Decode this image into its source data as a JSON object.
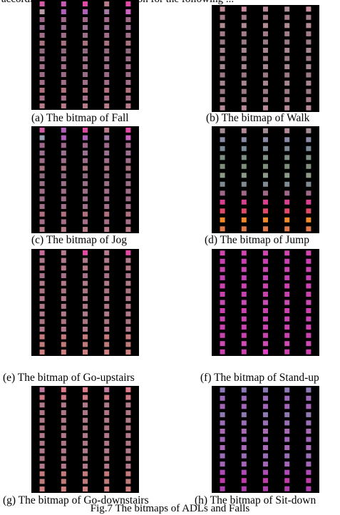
{
  "top_text": "according appropriate information for the following ...",
  "figure_caption": "Fig.7 The bitmaps of ADLs and Falls",
  "panels": [
    {
      "id": "fall",
      "caption": "(a) The bitmap of Fall",
      "columns": [
        [
          "#d25aa6",
          "#b79aa6",
          "#a06888",
          "#9a6f8f",
          "#a06d88",
          "#a6727f",
          "#8f6a7f",
          "#996e86",
          "#a06d88",
          "#9b6a86",
          "#a06e88",
          "#b0717f",
          "#a46f86",
          "#b77a88"
        ],
        [
          "#c65ab5",
          "#b05fb8",
          "#a06888",
          "#9a6f8f",
          "#a06d88",
          "#a6727f",
          "#8f6a7f",
          "#996e86",
          "#a06d88",
          "#9b6a86",
          "#a06e88",
          "#b0717f",
          "#a46f86",
          "#b77a88"
        ],
        [
          "#e04aa5",
          "#b05fb8",
          "#a06888",
          "#9a6f8f",
          "#a06d88",
          "#a6727f",
          "#8f6a7f",
          "#996e86",
          "#a06d88",
          "#9b6a86",
          "#a06e88",
          "#b0717f",
          "#a46f86",
          "#b77a88"
        ],
        [
          "#b77a88",
          "#a27aa3",
          "#a06888",
          "#9a6f8f",
          "#a06d88",
          "#a6727f",
          "#8f6a7f",
          "#996e86",
          "#a06d88",
          "#9b6a86",
          "#a06e88",
          "#b0717f",
          "#a46f86",
          "#b77a88"
        ],
        [
          "#e04aa5",
          "#cc63c1",
          "#a06888",
          "#9a6f8f",
          "#a06d88",
          "#a6727f",
          "#8f6a7f",
          "#996e86",
          "#a06d88",
          "#9b6a86",
          "#a06e88",
          "#b0717f",
          "#a46f86",
          "#b77a88"
        ]
      ]
    },
    {
      "id": "walk",
      "caption": "(b) The bitmap of Walk",
      "columns": [
        [
          "#c08c98",
          "#a47c88",
          "#b28a94",
          "#a27c8a",
          "#9a7a86",
          "#a88592",
          "#987884",
          "#a38490",
          "#9a7884",
          "#a88592",
          "#9b7986",
          "#a47c88",
          "#b58a96"
        ],
        [
          "#c98ba0",
          "#a47c88",
          "#b28a94",
          "#a27c8a",
          "#9a7a86",
          "#a88592",
          "#987884",
          "#a38490",
          "#9a7884",
          "#a88592",
          "#9b7986",
          "#a47c88",
          "#b58a96"
        ],
        [
          "#b88896",
          "#a47c88",
          "#b28a94",
          "#a27c8a",
          "#9a7a86",
          "#a88592",
          "#987884",
          "#a38490",
          "#9a7884",
          "#a88592",
          "#9b7986",
          "#a47c88",
          "#b58a96"
        ],
        [
          "#ad8f9c",
          "#a47c88",
          "#b28a94",
          "#a27c8a",
          "#9a7a86",
          "#a88592",
          "#987884",
          "#a38490",
          "#9a7884",
          "#a88592",
          "#9b7986",
          "#a47c88",
          "#b58a96"
        ],
        [
          "#c78f9e",
          "#a47c88",
          "#b28a94",
          "#a27c8a",
          "#9a7a86",
          "#a88592",
          "#987884",
          "#a38490",
          "#9a7884",
          "#a88592",
          "#9b7986",
          "#a47c88",
          "#b58a96"
        ]
      ]
    },
    {
      "id": "jog",
      "caption": "(c) The bitmap of Jog",
      "columns": [
        [
          "#d25aa6",
          "#9aa0b5",
          "#a06888",
          "#9a6f8f",
          "#a06d88",
          "#a6727f",
          "#8f6a7f",
          "#996e86",
          "#a06d88",
          "#9b6a86",
          "#a06e88",
          "#b0717f",
          "#a46f86",
          "#b77a88"
        ],
        [
          "#b05fb8",
          "#b05fb8",
          "#a06888",
          "#9a6f8f",
          "#a06d88",
          "#a6727f",
          "#8f6a7f",
          "#996e86",
          "#a06d88",
          "#9b6a86",
          "#a06e88",
          "#b0717f",
          "#a46f86",
          "#b77a88"
        ],
        [
          "#e04aa5",
          "#b05fb8",
          "#a06888",
          "#9a6f8f",
          "#a06d88",
          "#a6727f",
          "#8f6a7f",
          "#996e86",
          "#a06d88",
          "#9b6a86",
          "#a06e88",
          "#b0717f",
          "#a46f86",
          "#b77a88"
        ],
        [
          "#b77a88",
          "#a27aa3",
          "#a06888",
          "#9a6f8f",
          "#a06d88",
          "#a6727f",
          "#8f6a7f",
          "#996e86",
          "#a06d88",
          "#9b6a86",
          "#a06e88",
          "#b0717f",
          "#a46f86",
          "#b77a88"
        ],
        [
          "#e04aa5",
          "#cc63c1",
          "#a06888",
          "#9a6f8f",
          "#a06d88",
          "#a6727f",
          "#8f6a7f",
          "#996e86",
          "#a06d88",
          "#9b6a86",
          "#a06e88",
          "#b0717f",
          "#a46f86",
          "#b77a88"
        ]
      ]
    },
    {
      "id": "jump",
      "caption": "(d) The bitmap of Jump",
      "columns": [
        [
          "#a48c98",
          "#8a8aa6",
          "#7c8a96",
          "#7d8f82",
          "#7e8e7a",
          "#8c9a86",
          "#7f8a92",
          "#a06888",
          "#d8408f",
          "#e04a6a",
          "#f08a2a",
          "#e07a4a"
        ],
        [
          "#b48a98",
          "#8a8aa6",
          "#7c8a96",
          "#7d8f82",
          "#7e8e7a",
          "#8c9a86",
          "#7f8a92",
          "#a06888",
          "#d8408f",
          "#e04a6a",
          "#f08a2a",
          "#e07a4a"
        ],
        [
          "#a48c98",
          "#8a8aa6",
          "#7c8a96",
          "#7d8f82",
          "#7e8e7a",
          "#8c9a86",
          "#7f8a92",
          "#a06888",
          "#d8408f",
          "#e04a6a",
          "#f08a2a",
          "#e07a4a"
        ],
        [
          "#b48a98",
          "#8a8aa6",
          "#7c8a96",
          "#7d8f82",
          "#7e8e7a",
          "#8c9a86",
          "#7f8a92",
          "#a06888",
          "#d8408f",
          "#e04a6a",
          "#f08a2a",
          "#e07a4a"
        ],
        [
          "#a48c98",
          "#8a8aa6",
          "#7c8a96",
          "#7d8f82",
          "#7e8e7a",
          "#8c9a86",
          "#7f8a92",
          "#a06888",
          "#d8408f",
          "#e04a6a",
          "#f08a2a",
          "#e07a4a"
        ]
      ]
    },
    {
      "id": "go-upstairs",
      "caption": "(e) The bitmap of Go-upstairs",
      "columns": [
        [
          "#c76a9a",
          "#b07a8c",
          "#b27684",
          "#a67088",
          "#b07a88",
          "#aa7480",
          "#b07888",
          "#ac7684",
          "#b07a88",
          "#aa7480",
          "#b07888",
          "#c47a7a",
          "#c07a7a",
          "#d08080"
        ],
        [
          "#b87a90",
          "#b07a8c",
          "#b27684",
          "#a67088",
          "#b07a88",
          "#aa7480",
          "#b07888",
          "#ac7684",
          "#b07a88",
          "#aa7480",
          "#b07888",
          "#c47a7a",
          "#c07a7a",
          "#d08080"
        ],
        [
          "#e04aa5",
          "#b07a8c",
          "#b27684",
          "#a67088",
          "#b07a88",
          "#aa7480",
          "#b07888",
          "#ac7684",
          "#b07a88",
          "#aa7480",
          "#b07888",
          "#c47a7a",
          "#c07a7a",
          "#d08080"
        ],
        [
          "#b87a90",
          "#b07a8c",
          "#b27684",
          "#a67088",
          "#b07a88",
          "#aa7480",
          "#b07888",
          "#ac7684",
          "#b07a88",
          "#aa7480",
          "#b07888",
          "#c47a7a",
          "#c07a7a",
          "#d08080"
        ],
        [
          "#e04aa5",
          "#b07a8c",
          "#b27684",
          "#a67088",
          "#b07a88",
          "#aa7480",
          "#b07888",
          "#ac7684",
          "#b07a88",
          "#aa7480",
          "#b07888",
          "#c47a7a",
          "#c07a7a",
          "#d08080"
        ]
      ]
    },
    {
      "id": "stand-up",
      "caption": "(f) The bitmap of Stand-up",
      "columns": [
        [
          "#d245b0",
          "#cc3fb2",
          "#c946b0",
          "#c443b4",
          "#cc42b0",
          "#c842ae",
          "#c94bb2",
          "#cc40b0",
          "#c746b4",
          "#cc42b0",
          "#c843ae",
          "#d04ab4",
          "#cf40b0"
        ],
        [
          "#d245b0",
          "#cc3fb2",
          "#c946b0",
          "#c443b4",
          "#cc42b0",
          "#c842ae",
          "#c94bb2",
          "#cc40b0",
          "#c746b4",
          "#cc42b0",
          "#c843ae",
          "#d04ab4",
          "#cf40b0"
        ],
        [
          "#d245b0",
          "#cc3fb2",
          "#c946b0",
          "#c443b4",
          "#cc42b0",
          "#c842ae",
          "#c94bb2",
          "#cc40b0",
          "#c746b4",
          "#cc42b0",
          "#c843ae",
          "#d04ab4",
          "#e040c8"
        ],
        [
          "#d245b0",
          "#cc3fb2",
          "#c946b0",
          "#c443b4",
          "#cc42b0",
          "#c842ae",
          "#c94bb2",
          "#cc40b0",
          "#c746b4",
          "#cc42b0",
          "#c843ae",
          "#d04ab4",
          "#cf40b0"
        ],
        [
          "#d245b0",
          "#cc3fb2",
          "#c946b0",
          "#c443b4",
          "#cc42b0",
          "#c842ae",
          "#c94bb2",
          "#cc40b0",
          "#c746b4",
          "#cc42b0",
          "#c843ae",
          "#d04ab4",
          "#cf40b0"
        ]
      ]
    },
    {
      "id": "go-downstairs",
      "caption": "(g) The bitmap of Go-downstairs",
      "columns": [
        [
          "#c07aa0",
          "#d07a88",
          "#b07a88",
          "#ae7684",
          "#b07a88",
          "#aa7480",
          "#b07888",
          "#ac7684",
          "#b07a88",
          "#aa7480",
          "#b07888",
          "#c47a7a",
          "#c07a7a",
          "#d08080"
        ],
        [
          "#e07a8c",
          "#d07a88",
          "#b07a88",
          "#ae7684",
          "#b07a88",
          "#aa7480",
          "#b07888",
          "#ac7684",
          "#b07a88",
          "#aa7480",
          "#b07888",
          "#c47a7a",
          "#c07a7a",
          "#d08080"
        ],
        [
          "#e07a8c",
          "#d07a88",
          "#b07a88",
          "#ae7684",
          "#b07a88",
          "#aa7480",
          "#b07888",
          "#ac7684",
          "#b07a88",
          "#aa7480",
          "#b07888",
          "#c47a7a",
          "#c07a7a",
          "#d08080"
        ],
        [
          "#c07aa0",
          "#d07a88",
          "#b07a88",
          "#ae7684",
          "#b07a88",
          "#aa7480",
          "#b07888",
          "#ac7684",
          "#b07a88",
          "#aa7480",
          "#b07888",
          "#c47a7a",
          "#c07a7a",
          "#d08080"
        ],
        [
          "#e07a8c",
          "#d07a88",
          "#b07a88",
          "#ae7684",
          "#b07a88",
          "#aa7480",
          "#b07888",
          "#ac7684",
          "#b07a88",
          "#aa7480",
          "#b07888",
          "#c47a7a",
          "#c07a7a",
          "#d08080"
        ]
      ]
    },
    {
      "id": "sit-down",
      "caption": "(h) The bitmap of Sit-down",
      "columns": [
        [
          "#8c78b4",
          "#9b6ab8",
          "#a464b8",
          "#8e7ab0",
          "#9a6eb6",
          "#a86ab4",
          "#a065b8",
          "#a86ab6",
          "#9a6eb6",
          "#a464b8",
          "#b04ab8",
          "#c03aa8",
          "#b040b0"
        ],
        [
          "#8c78b4",
          "#9b6ab8",
          "#a464b8",
          "#8e7ab0",
          "#9a6eb6",
          "#a86ab4",
          "#a065b8",
          "#a86ab6",
          "#9a6eb6",
          "#a464b8",
          "#b04ab8",
          "#c03aa8",
          "#b040b0"
        ],
        [
          "#8c78b4",
          "#9b6ab8",
          "#a464b8",
          "#8e7ab0",
          "#9a6eb6",
          "#a86ab4",
          "#a065b8",
          "#a86ab6",
          "#9a6eb6",
          "#a464b8",
          "#b04ab8",
          "#c03aa8",
          "#b040b0"
        ],
        [
          "#8c78b4",
          "#9b6ab8",
          "#a464b8",
          "#8e7ab0",
          "#9a6eb6",
          "#a86ab4",
          "#a065b8",
          "#a86ab6",
          "#9a6eb6",
          "#a464b8",
          "#b04ab8",
          "#c03aa8",
          "#b040b0"
        ],
        [
          "#8c78b4",
          "#9b6ab8",
          "#a464b8",
          "#8e7ab0",
          "#9a6eb6",
          "#a86ab4",
          "#a065b8",
          "#a86ab6",
          "#9a6eb6",
          "#a464b8",
          "#b04ab8",
          "#c03aa8",
          "#b040b0"
        ]
      ]
    }
  ]
}
